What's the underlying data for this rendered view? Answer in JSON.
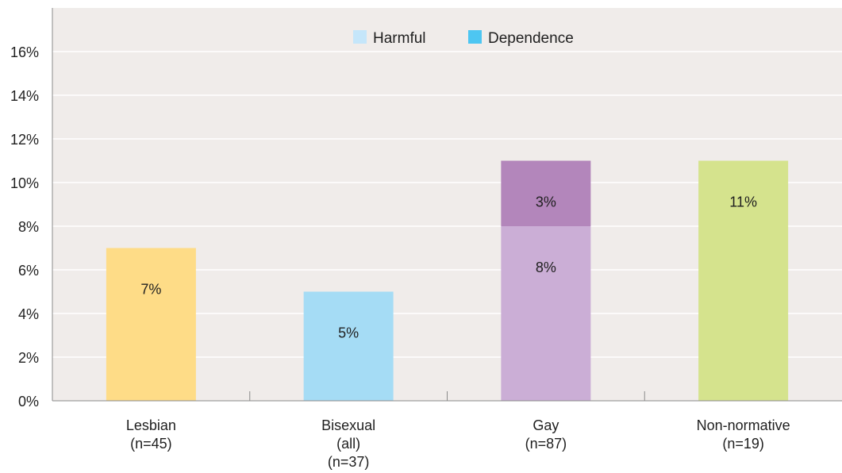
{
  "chart_data": {
    "type": "bar",
    "stacked": true,
    "ylim": [
      0,
      18
    ],
    "yticks": [
      0,
      2,
      4,
      6,
      8,
      10,
      12,
      14,
      16
    ],
    "ytick_labels": [
      "0%",
      "2%",
      "4%",
      "6%",
      "8%",
      "10%",
      "12%",
      "14%",
      "16%"
    ],
    "xlabel": "",
    "ylabel": "",
    "title": "",
    "grid": true,
    "legend_position": "top-center",
    "legend": [
      {
        "name": "Harmful",
        "color": "#c5e6fa"
      },
      {
        "name": "Dependence",
        "color": "#4dc6f2"
      }
    ],
    "categories": [
      {
        "lines": [
          "Lesbian",
          "(n=45)"
        ]
      },
      {
        "lines": [
          "Bisexual",
          "(all)",
          "(n=37)"
        ]
      },
      {
        "lines": [
          "Gay",
          "(n=87)"
        ]
      },
      {
        "lines": [
          "Non-normative",
          "(n=19)"
        ]
      }
    ],
    "bars": [
      {
        "segments": [
          {
            "value": 7,
            "label": "7%",
            "color": "#fedc87"
          }
        ]
      },
      {
        "segments": [
          {
            "value": 5,
            "label": "5%",
            "color": "#a5dcf5"
          }
        ]
      },
      {
        "segments": [
          {
            "value": 8,
            "label": "8%",
            "color": "#cbaed6"
          },
          {
            "value": 3,
            "label": "3%",
            "color": "#b386bb"
          }
        ]
      },
      {
        "segments": [
          {
            "value": 11,
            "label": "11%",
            "color": "#d5e38d"
          }
        ]
      }
    ],
    "plot_background": "#f0ecea",
    "grid_color": "#ffffff"
  }
}
